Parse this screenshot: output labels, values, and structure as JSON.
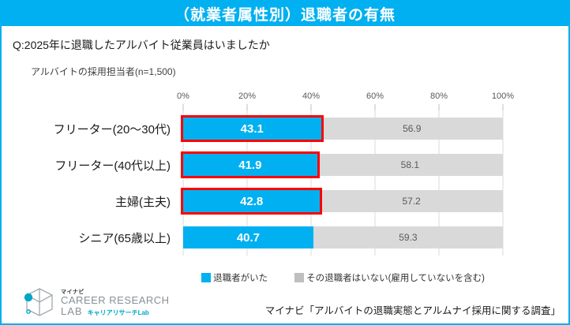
{
  "colors": {
    "accent_cyan": "#00B0F0",
    "bar_blue": "#00B0F0",
    "bar_gray": "#D9D9D9",
    "highlight_red": "#FF0000",
    "logo_teal": "#00A7C7",
    "axis_text": "#595959"
  },
  "header": {
    "title": "（就業者属性別）退職者の有無",
    "question": "Q:2025年に退職したアルバイト従業員はいましたか",
    "subtitle": "アルバイトの採用担当者(n=1,500)"
  },
  "chart_data": {
    "type": "bar",
    "stacked": true,
    "orientation": "horizontal",
    "title": "（就業者属性別）退職者の有無",
    "categories": [
      "フリーター(20～30代)",
      "フリーター(40代以上)",
      "主婦(主夫)",
      "シニア(65歳以上)"
    ],
    "series": [
      {
        "name": "退職者がいた",
        "color": "#00B0F0",
        "values": [
          43.1,
          41.9,
          42.8,
          40.7
        ]
      },
      {
        "name": "その退職者はいない(雇用していないを含む)",
        "color": "#D9D9D9",
        "values": [
          56.9,
          58.1,
          57.2,
          59.3
        ]
      }
    ],
    "x_ticks": [
      "0%",
      "20%",
      "40%",
      "60%",
      "80%",
      "100%"
    ],
    "xlim": [
      0,
      100
    ],
    "grid": true,
    "legend_position": "bottom",
    "highlighted_rows": [
      true,
      true,
      true,
      false
    ],
    "highlight_color": "#FF0000"
  },
  "legend": {
    "items": [
      {
        "label": "退職者がいた",
        "color": "#00B0F0"
      },
      {
        "label": "その退職者はいない(雇用していないを含む)",
        "color": "#BFBFBF"
      }
    ]
  },
  "footer": {
    "logo": {
      "brand_small": "マイナビ",
      "line1": "CAREER RESEARCH",
      "line2": "LAB",
      "line2_sub": "キャリアリサーチLab"
    },
    "source": "マイナビ「アルバイトの退職実態とアルムナイ採用に関する調査」"
  }
}
